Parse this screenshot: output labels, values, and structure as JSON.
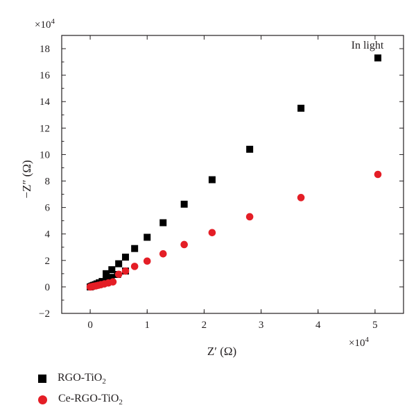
{
  "chart_data": {
    "type": "scatter",
    "annotation": "In light",
    "xlabel": "Z′ (Ω)",
    "ylabel": "−Z″ (Ω)",
    "x_multiplier": "×10",
    "x_multiplier_exp": "4",
    "y_multiplier": "×10",
    "y_multiplier_exp": "4",
    "xlim": [
      -0.5,
      5.5
    ],
    "ylim": [
      -2,
      19
    ],
    "xticks": [
      0,
      1,
      2,
      3,
      4,
      5
    ],
    "yticks": [
      -2,
      0,
      2,
      4,
      6,
      8,
      10,
      12,
      14,
      16,
      18
    ],
    "grid": false,
    "series": [
      {
        "name": "RGO-TiO2",
        "marker": "square",
        "color": "#000000",
        "points": [
          [
            0.0,
            0.0
          ],
          [
            0.02,
            0.04
          ],
          [
            0.04,
            0.08
          ],
          [
            0.06,
            0.12
          ],
          [
            0.09,
            0.17
          ],
          [
            0.12,
            0.23
          ],
          [
            0.16,
            0.31
          ],
          [
            0.21,
            0.41
          ],
          [
            0.28,
            0.55
          ],
          [
            0.37,
            0.72
          ],
          [
            0.48,
            0.94
          ],
          [
            0.62,
            1.2
          ],
          [
            0.5,
            1.75
          ],
          [
            0.38,
            1.3
          ],
          [
            0.28,
            1.0
          ],
          [
            0.62,
            2.25
          ],
          [
            0.78,
            2.9
          ],
          [
            1.0,
            3.75
          ],
          [
            1.28,
            4.85
          ],
          [
            1.65,
            6.25
          ],
          [
            2.14,
            8.1
          ],
          [
            2.8,
            10.4
          ],
          [
            3.7,
            13.5
          ],
          [
            5.05,
            17.3
          ]
        ]
      },
      {
        "name": "Ce-RGO-TiO2",
        "marker": "circle",
        "color": "#e41e26",
        "points": [
          [
            0.0,
            0.0
          ],
          [
            0.03,
            0.02
          ],
          [
            0.06,
            0.05
          ],
          [
            0.1,
            0.08
          ],
          [
            0.14,
            0.12
          ],
          [
            0.19,
            0.17
          ],
          [
            0.25,
            0.23
          ],
          [
            0.32,
            0.3
          ],
          [
            0.4,
            0.38
          ],
          [
            0.5,
            0.95
          ],
          [
            0.62,
            1.2
          ],
          [
            0.78,
            1.55
          ],
          [
            1.0,
            1.95
          ],
          [
            1.28,
            2.5
          ],
          [
            1.65,
            3.2
          ],
          [
            2.14,
            4.1
          ],
          [
            2.8,
            5.3
          ],
          [
            3.7,
            6.75
          ],
          [
            5.05,
            8.5
          ]
        ]
      }
    ]
  },
  "legend": [
    {
      "name": "RGO-TiO2",
      "base": "RGO-TiO",
      "sub": "2",
      "marker": "square"
    },
    {
      "name": "Ce-RGO-TiO2",
      "base": "Ce-RGO-TiO",
      "sub": "2",
      "marker": "circle"
    }
  ]
}
